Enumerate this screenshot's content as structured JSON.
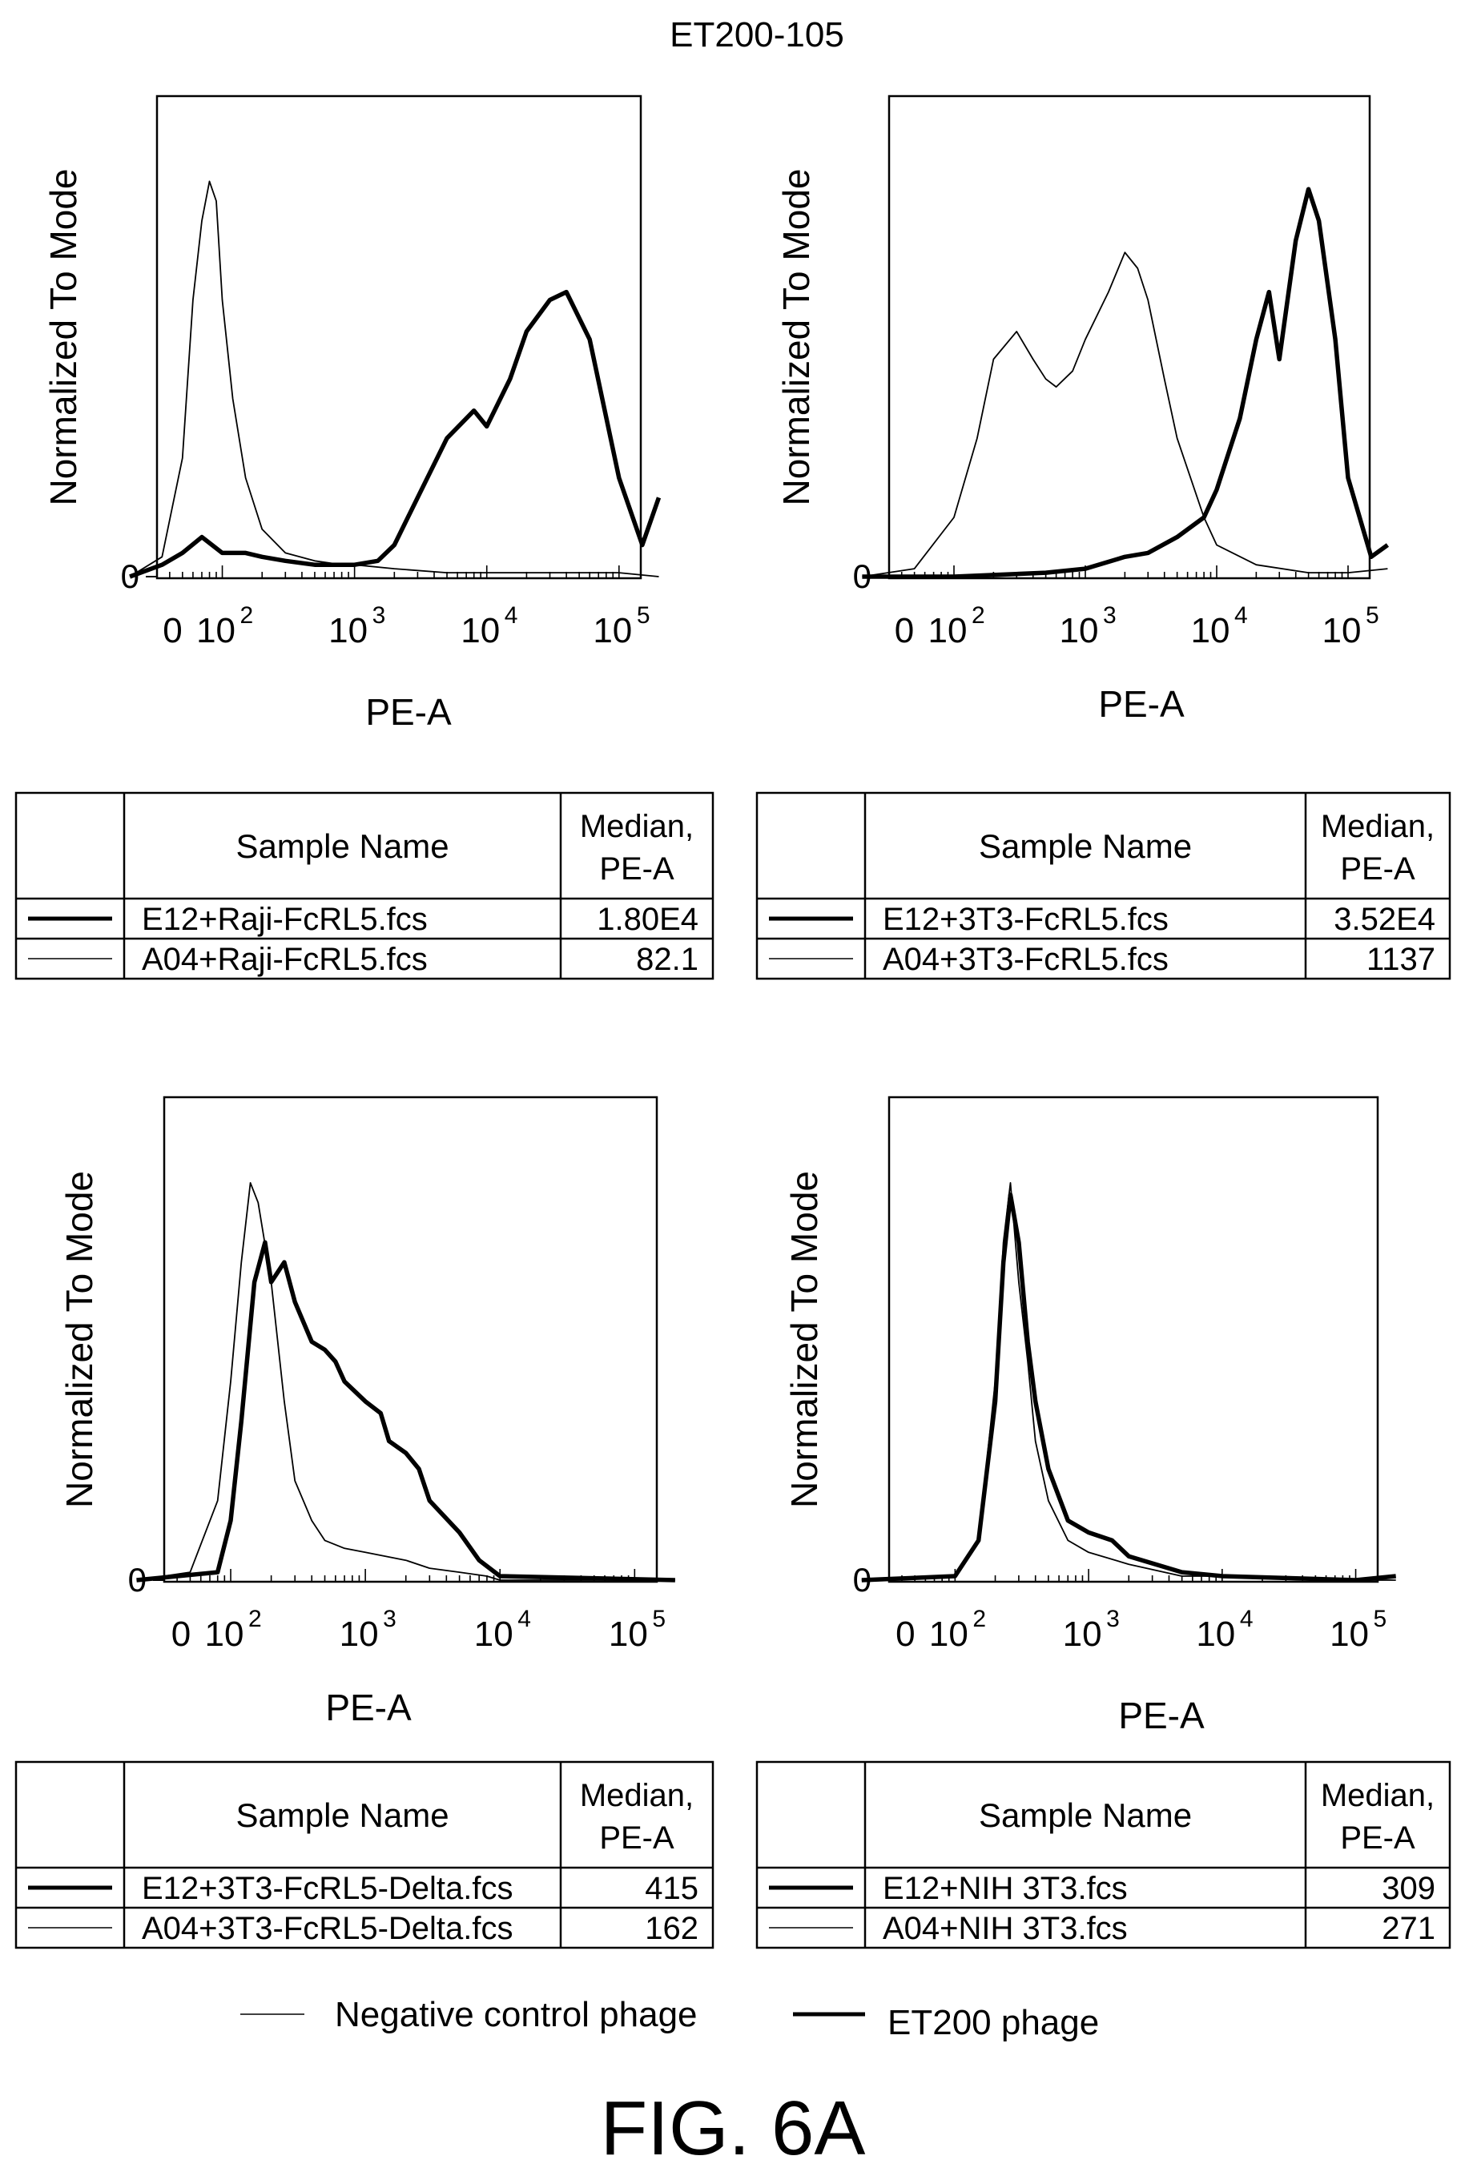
{
  "figure": {
    "title": "ET200-105",
    "caption": "FIG. 6A",
    "legend": {
      "thin_label": "Negative control phage",
      "thick_label": "ET200 phage"
    }
  },
  "chart_data": [
    {
      "type": "line",
      "xscale": "log",
      "xlabel": "PE-A",
      "ylabel": "Normalized To Mode",
      "y_ticks": [
        "0"
      ],
      "x_ticks": [
        "0",
        "10^2",
        "10^3",
        "10^4",
        "10^5"
      ],
      "series": [
        {
          "name": "",
          "style": "thin",
          "x": [
            20,
            35,
            50,
            60,
            70,
            80,
            90,
            100,
            120,
            150,
            200,
            300,
            500,
            800,
            1000,
            2000,
            5000,
            10000,
            30000,
            100000,
            200000
          ],
          "y": [
            0.0,
            0.05,
            0.3,
            0.7,
            0.9,
            1.0,
            0.95,
            0.7,
            0.45,
            0.25,
            0.12,
            0.06,
            0.04,
            0.03,
            0.03,
            0.02,
            0.01,
            0.01,
            0.01,
            0.01,
            0.0
          ]
        },
        {
          "name": "",
          "style": "thick",
          "x": [
            20,
            35,
            50,
            70,
            100,
            150,
            200,
            300,
            500,
            1000,
            1500,
            2000,
            3000,
            5000,
            8000,
            10000,
            15000,
            20000,
            30000,
            40000,
            60000,
            100000,
            150000,
            200000
          ],
          "y": [
            0.0,
            0.03,
            0.06,
            0.1,
            0.06,
            0.06,
            0.05,
            0.04,
            0.03,
            0.03,
            0.04,
            0.08,
            0.2,
            0.35,
            0.42,
            0.38,
            0.5,
            0.62,
            0.7,
            0.72,
            0.6,
            0.25,
            0.08,
            0.2
          ]
        }
      ],
      "table": {
        "headers": [
          "",
          "Sample Name",
          "Median, PE-A"
        ],
        "rows": [
          {
            "style": "thick",
            "sample": "E12+Raji-FcRL5.fcs",
            "median": "1.80E4"
          },
          {
            "style": "thin",
            "sample": "A04+Raji-FcRL5.fcs",
            "median": "82.1"
          }
        ]
      }
    },
    {
      "type": "line",
      "xscale": "log",
      "xlabel": "PE-A",
      "ylabel": "Normalized To Mode",
      "y_ticks": [
        "0"
      ],
      "x_ticks": [
        "0",
        "10^2",
        "10^3",
        "10^4",
        "10^5"
      ],
      "series": [
        {
          "name": "",
          "style": "thin",
          "x": [
            20,
            50,
            100,
            150,
            200,
            300,
            400,
            500,
            600,
            800,
            1000,
            1500,
            2000,
            2500,
            3000,
            4000,
            5000,
            8000,
            10000,
            20000,
            50000,
            100000,
            200000
          ],
          "y": [
            0.0,
            0.02,
            0.15,
            0.35,
            0.55,
            0.62,
            0.55,
            0.5,
            0.48,
            0.52,
            0.6,
            0.72,
            0.82,
            0.78,
            0.7,
            0.5,
            0.35,
            0.15,
            0.08,
            0.03,
            0.01,
            0.01,
            0.02
          ]
        },
        {
          "name": "",
          "style": "thick",
          "x": [
            20,
            100,
            500,
            1000,
            2000,
            3000,
            5000,
            8000,
            10000,
            15000,
            20000,
            25000,
            30000,
            40000,
            50000,
            60000,
            80000,
            100000,
            150000,
            200000
          ],
          "y": [
            0.0,
            0.0,
            0.01,
            0.02,
            0.05,
            0.06,
            0.1,
            0.15,
            0.22,
            0.4,
            0.6,
            0.72,
            0.55,
            0.85,
            0.98,
            0.9,
            0.6,
            0.25,
            0.05,
            0.08
          ]
        }
      ],
      "table": {
        "headers": [
          "",
          "Sample Name",
          "Median, PE-A"
        ],
        "rows": [
          {
            "style": "thick",
            "sample": "E12+3T3-FcRL5.fcs",
            "median": "3.52E4"
          },
          {
            "style": "thin",
            "sample": "A04+3T3-FcRL5.fcs",
            "median": "1137"
          }
        ]
      }
    },
    {
      "type": "line",
      "xscale": "log",
      "xlabel": "PE-A",
      "ylabel": "Normalized To Mode",
      "y_ticks": [
        "0"
      ],
      "x_ticks": [
        "0",
        "10^2",
        "10^3",
        "10^4",
        "10^5"
      ],
      "series": [
        {
          "name": "",
          "style": "thin",
          "x": [
            20,
            50,
            80,
            100,
            120,
            140,
            160,
            200,
            250,
            300,
            400,
            500,
            700,
            1000,
            2000,
            3000,
            5000,
            8000,
            10000,
            200000
          ],
          "y": [
            0.0,
            0.02,
            0.2,
            0.5,
            0.8,
            1.0,
            0.95,
            0.75,
            0.45,
            0.25,
            0.15,
            0.1,
            0.08,
            0.07,
            0.05,
            0.03,
            0.02,
            0.01,
            0.0,
            0.0
          ]
        },
        {
          "name": "",
          "style": "thick",
          "x": [
            20,
            80,
            100,
            120,
            150,
            180,
            200,
            250,
            300,
            400,
            500,
            600,
            700,
            1000,
            1300,
            1500,
            2000,
            2500,
            3000,
            5000,
            7000,
            10000,
            200000
          ],
          "y": [
            0.0,
            0.02,
            0.15,
            0.4,
            0.75,
            0.85,
            0.75,
            0.8,
            0.7,
            0.6,
            0.58,
            0.55,
            0.5,
            0.45,
            0.42,
            0.35,
            0.32,
            0.28,
            0.2,
            0.12,
            0.05,
            0.01,
            0.0
          ]
        }
      ],
      "table": {
        "headers": [
          "",
          "Sample Name",
          "Median, PE-A"
        ],
        "rows": [
          {
            "style": "thick",
            "sample": "E12+3T3-FcRL5-Delta.fcs",
            "median": "415"
          },
          {
            "style": "thin",
            "sample": "A04+3T3-FcRL5-Delta.fcs",
            "median": "162"
          }
        ]
      }
    },
    {
      "type": "line",
      "xscale": "log",
      "xlabel": "PE-A",
      "ylabel": "Normalized To Mode",
      "y_ticks": [
        "0"
      ],
      "x_ticks": [
        "0",
        "10^2",
        "10^3",
        "10^4",
        "10^5"
      ],
      "series": [
        {
          "name": "",
          "style": "thin",
          "x": [
            20,
            100,
            150,
            200,
            230,
            260,
            300,
            350,
            400,
            500,
            700,
            1000,
            2000,
            5000,
            10000,
            100000,
            200000
          ],
          "y": [
            0.0,
            0.01,
            0.1,
            0.5,
            0.85,
            1.0,
            0.75,
            0.55,
            0.35,
            0.2,
            0.1,
            0.07,
            0.04,
            0.01,
            0.01,
            0.0,
            0.0
          ]
        },
        {
          "name": "",
          "style": "thick",
          "x": [
            20,
            100,
            150,
            200,
            230,
            260,
            300,
            350,
            400,
            500,
            700,
            1000,
            1500,
            2000,
            5000,
            10000,
            100000,
            200000
          ],
          "y": [
            0.0,
            0.01,
            0.1,
            0.45,
            0.8,
            0.97,
            0.85,
            0.6,
            0.45,
            0.28,
            0.15,
            0.12,
            0.1,
            0.06,
            0.02,
            0.01,
            0.0,
            0.01
          ]
        }
      ],
      "table": {
        "headers": [
          "",
          "Sample Name",
          "Median, PE-A"
        ],
        "rows": [
          {
            "style": "thick",
            "sample": "E12+NIH 3T3.fcs",
            "median": "309"
          },
          {
            "style": "thin",
            "sample": "A04+NIH 3T3.fcs",
            "median": "271"
          }
        ]
      }
    }
  ]
}
